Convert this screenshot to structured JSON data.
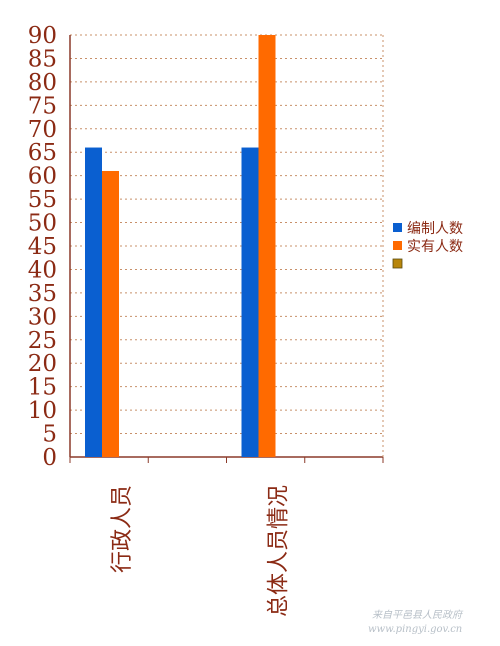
{
  "chart_data": {
    "type": "bar",
    "categories": [
      "行政人员",
      "总体人员情况"
    ],
    "series": [
      {
        "name": "编制人数",
        "values": [
          66,
          66
        ],
        "color": "#0a5fd0"
      },
      {
        "name": "实有人数",
        "values": [
          61,
          90
        ],
        "color": "#ff6a00"
      },
      {
        "name": "",
        "values": [
          0,
          0
        ],
        "color": "#b8860b"
      }
    ],
    "ylim": [
      0,
      90
    ],
    "yticks": [
      0,
      5,
      10,
      15,
      20,
      25,
      30,
      35,
      40,
      45,
      50,
      55,
      60,
      65,
      70,
      75,
      80,
      85,
      90
    ],
    "grid": true,
    "legend": "right"
  },
  "watermark": {
    "line1": "来自平邑县人民政府",
    "line2": "www.pingyi.gov.cn"
  }
}
